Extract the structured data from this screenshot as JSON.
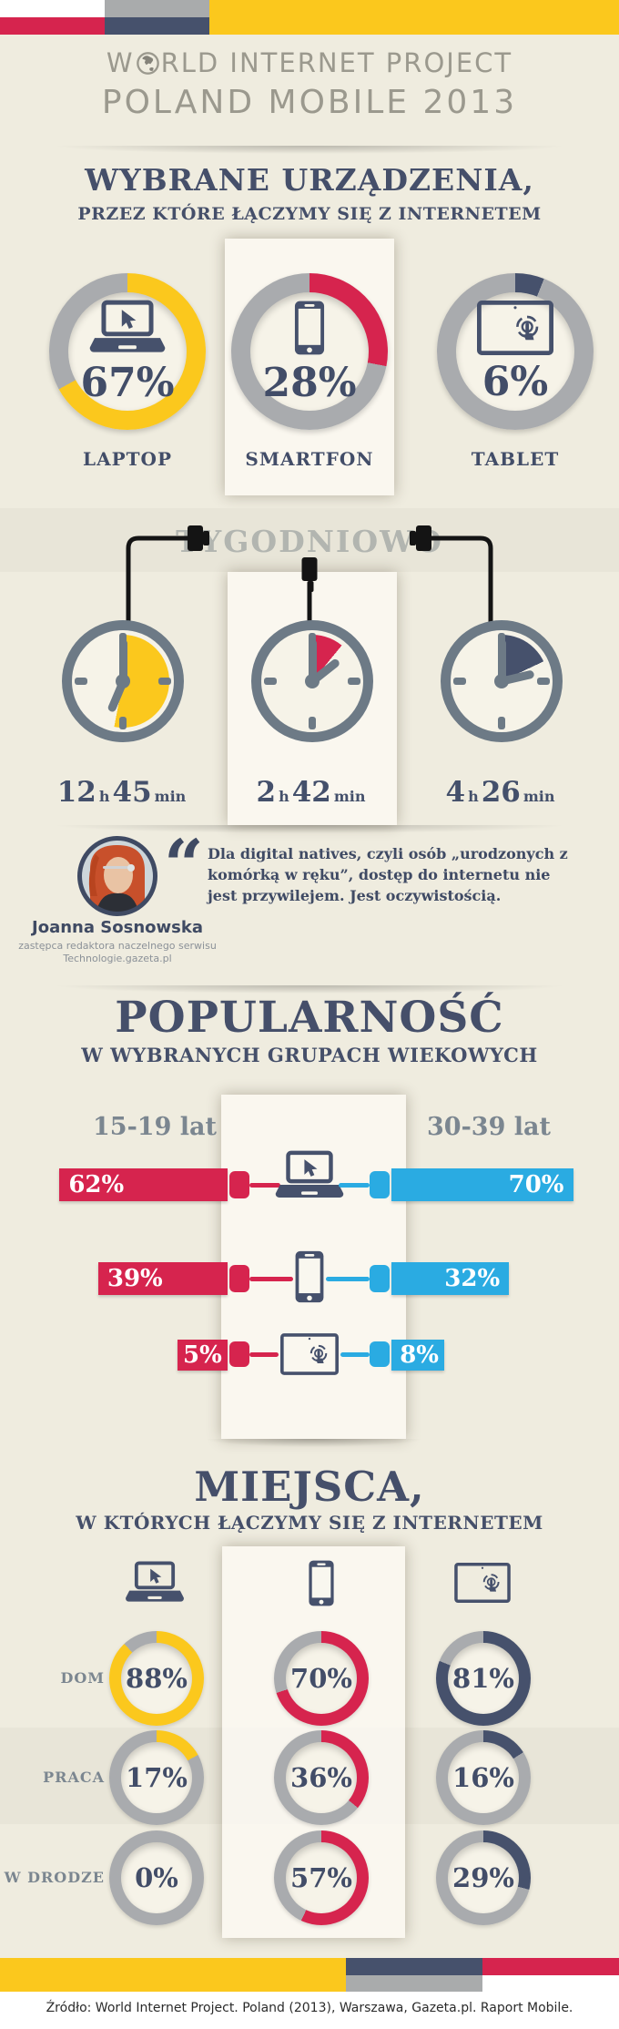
{
  "palette": {
    "yellow": "#fbc81d",
    "red": "#d6244e",
    "navy": "#46516c",
    "blue": "#2aabe2",
    "gray_ring": "#a9abae"
  },
  "header": {
    "logo_prefix": "W",
    "logo_suffix": "RLD INTERNET PROJECT",
    "logo_line2": "POLAND MOBILE 2013"
  },
  "devices_section": {
    "title": "WYBRANE URZĄDZENIA,",
    "subtitle": "PRZEZ KTÓRE ŁĄCZYMY SIĘ Z INTERNETEM",
    "items": [
      {
        "label": "LAPTOP",
        "value_label": "67%",
        "percent": 67,
        "color": "#fbc81d",
        "icon": "laptop-icon"
      },
      {
        "label": "SMARTFON",
        "value_label": "28%",
        "percent": 28,
        "color": "#d6244e",
        "icon": "smartphone-icon"
      },
      {
        "label": "TABLET",
        "value_label": "6%",
        "percent": 6,
        "color": "#46516c",
        "icon": "tablet-touch-icon"
      }
    ]
  },
  "weekly_section": {
    "title": "TYGODNIOWO",
    "clocks": [
      {
        "device": "laptop",
        "hours": "12",
        "hours_unit": "h",
        "minutes": "45",
        "minutes_unit": "min",
        "percent_of_day": 53,
        "color": "#fbc81d"
      },
      {
        "device": "smartfon",
        "hours": "2",
        "hours_unit": "h",
        "minutes": "42",
        "minutes_unit": "min",
        "percent_of_day": 11,
        "color": "#d6244e"
      },
      {
        "device": "tablet",
        "hours": "4",
        "hours_unit": "h",
        "minutes": "26",
        "minutes_unit": "min",
        "percent_of_day": 18,
        "color": "#46516c"
      }
    ]
  },
  "quote_section": {
    "quote_mark": "“",
    "text": "Dla digital natives, czyli osób „urodzonych z komórką w ręku”, dostęp do internetu nie jest przywilejem. Jest oczywistością.",
    "author": "Joanna Sosnowska",
    "role_line1": "zastępca redaktora naczelnego serwisu",
    "role_line2": "Technologie.gazeta.pl"
  },
  "popularity_section": {
    "title": "POPULARNOŚĆ",
    "subtitle": "W WYBRANYCH GRUPACH WIEKOWYCH",
    "left_group": "15-19 lat",
    "right_group": "30-39 lat",
    "rows": [
      {
        "device": "laptop",
        "left_label": "62%",
        "left_percent": 62,
        "right_label": "70%",
        "right_percent": 70
      },
      {
        "device": "smartfon",
        "left_label": "39%",
        "left_percent": 39,
        "right_label": "32%",
        "right_percent": 32
      },
      {
        "device": "tablet",
        "left_label": "5%",
        "left_percent": 5,
        "right_label": "8%",
        "right_percent": 8
      }
    ]
  },
  "places_section": {
    "title": "MIEJSCA,",
    "subtitle": "W KTÓRYCH ŁĄCZYMY SIĘ Z INTERNETEM",
    "rows": [
      {
        "label": "DOM",
        "cells": [
          {
            "value_label": "88%",
            "percent": 88,
            "color": "#fbc81d"
          },
          {
            "value_label": "70%",
            "percent": 70,
            "color": "#d6244e"
          },
          {
            "value_label": "81%",
            "percent": 81,
            "color": "#46516c"
          }
        ]
      },
      {
        "label": "PRACA",
        "cells": [
          {
            "value_label": "17%",
            "percent": 17,
            "color": "#fbc81d"
          },
          {
            "value_label": "36%",
            "percent": 36,
            "color": "#d6244e"
          },
          {
            "value_label": "16%",
            "percent": 16,
            "color": "#46516c"
          }
        ]
      },
      {
        "label": "W DRODZE",
        "cells": [
          {
            "value_label": "0%",
            "percent": 0,
            "color": "#a9abae"
          },
          {
            "value_label": "57%",
            "percent": 57,
            "color": "#d6244e"
          },
          {
            "value_label": "29%",
            "percent": 29,
            "color": "#46516c"
          }
        ]
      }
    ]
  },
  "footer": {
    "source": "Źródło: World Internet Project. Poland (2013), Warszawa, Gazeta.pl. Raport Mobile."
  },
  "chart_data": [
    {
      "type": "pie",
      "title": "Wybrane urządzenia, przez które łączymy się z internetem",
      "categories": [
        "Laptop",
        "Smartfon",
        "Tablet"
      ],
      "values": [
        67,
        28,
        6
      ],
      "unit": "%"
    },
    {
      "type": "pie",
      "title": "Tygodniowo (czas korzystania, udział doby)",
      "categories": [
        "Laptop",
        "Smartfon",
        "Tablet"
      ],
      "values_time": [
        "12h 45min",
        "2h 42min",
        "4h 26min"
      ],
      "values_percent_of_day": [
        53,
        11,
        18
      ]
    },
    {
      "type": "bar",
      "title": "Popularność w wybranych grupach wiekowych",
      "categories": [
        "Laptop",
        "Smartfon",
        "Tablet"
      ],
      "series": [
        {
          "name": "15-19 lat",
          "values": [
            62,
            39,
            5
          ]
        },
        {
          "name": "30-39 lat",
          "values": [
            70,
            32,
            8
          ]
        }
      ],
      "unit": "%"
    },
    {
      "type": "table",
      "title": "Miejsca, w których łączymy się z internetem",
      "columns": [
        "Laptop",
        "Smartfon",
        "Tablet"
      ],
      "rows": [
        {
          "label": "Dom",
          "values": [
            88,
            70,
            81
          ]
        },
        {
          "label": "Praca",
          "values": [
            17,
            36,
            16
          ]
        },
        {
          "label": "W drodze",
          "values": [
            0,
            57,
            29
          ]
        }
      ],
      "unit": "%"
    }
  ]
}
